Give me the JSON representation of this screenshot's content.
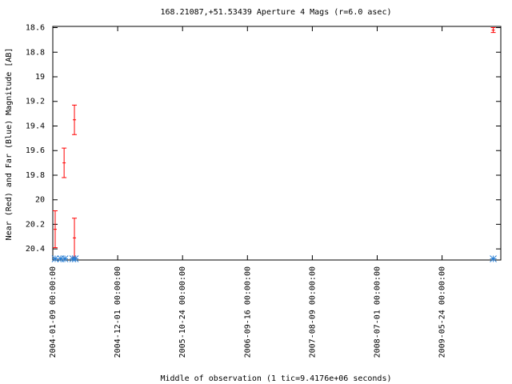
{
  "chart_data": {
    "type": "errorbar",
    "title": "168.21087,+51.53439   Aperture 4 Mags (r=6.0 asec)",
    "x_label": "Middle of observation (1 tic=9.4176e+06 seconds)",
    "y_label": "Near (Red) and Far (Blue) Magnitude [AB]",
    "xlim": [
      0,
      2258
    ],
    "xticks": [
      {
        "value": 0,
        "label": "2004-01-09 00:00:00"
      },
      {
        "value": 327,
        "label": "2004-12-01 00:00:00"
      },
      {
        "value": 654,
        "label": "2005-10-24 00:00:00"
      },
      {
        "value": 981,
        "label": "2006-09-16 00:00:00"
      },
      {
        "value": 1308,
        "label": "2007-08-09 00:00:00"
      },
      {
        "value": 1635,
        "label": "2008-07-01 00:00:00"
      },
      {
        "value": 1962,
        "label": "2009-05-24 00:00:00"
      }
    ],
    "ylim": [
      20.49,
      18.59
    ],
    "yticks": [
      18.6,
      18.8,
      19,
      19.2,
      19.4,
      19.6,
      19.8,
      20,
      20.2,
      20.4
    ],
    "series": [
      {
        "color": "#ff0000",
        "marker": "errorbar",
        "x": [
          12,
          57,
          109,
          109,
          2220
        ],
        "values": [
          20.24,
          19.7,
          19.35,
          20.31,
          18.62
        ],
        "errors": [
          0.15,
          0.12,
          0.12,
          0.16,
          0.02
        ]
      },
      {
        "color": "#2a7fd4",
        "marker": "asterisk",
        "x": [
          12,
          40,
          61,
          101,
          113,
          2220
        ],
        "values": [
          20.48,
          20.48,
          20.48,
          20.48,
          20.48,
          20.48
        ]
      }
    ]
  }
}
